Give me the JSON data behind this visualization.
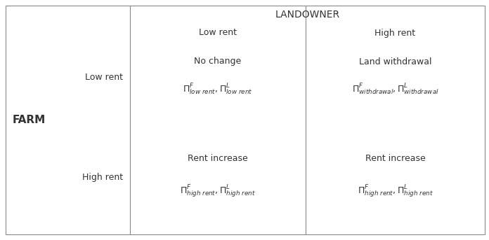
{
  "bg_color": "#ffffff",
  "border_color": "#888888",
  "text_color": "#333333",
  "title": "LANDOWNER",
  "farm_label": "FARM",
  "col_headers": [
    "Low rent",
    "High rent"
  ],
  "row_headers": [
    "Low rent",
    "High rent"
  ],
  "actions": [
    [
      "No change",
      "Land withdrawal"
    ],
    [
      "Rent increase",
      "Rent increase"
    ]
  ],
  "figsize": [
    6.96,
    3.43
  ],
  "dpi": 100,
  "farm_label_fontsize": 11,
  "header_fontsize": 10,
  "action_fontsize": 9,
  "payoff_fontsize": 9
}
